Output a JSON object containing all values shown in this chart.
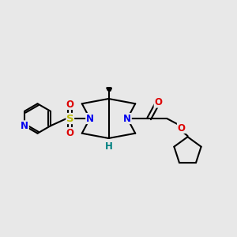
{
  "bg_color": "#e8e8e8",
  "bond_color": "#000000",
  "N_color": "#0000ee",
  "O_color": "#dd0000",
  "S_color": "#bbbb00",
  "H_color": "#008080",
  "py_N_color": "#0000ee",
  "lw": 1.5,
  "figsize": [
    3.0,
    3.0
  ],
  "dpi": 100,
  "xlim": [
    0,
    12
  ],
  "ylim": [
    1,
    10
  ]
}
